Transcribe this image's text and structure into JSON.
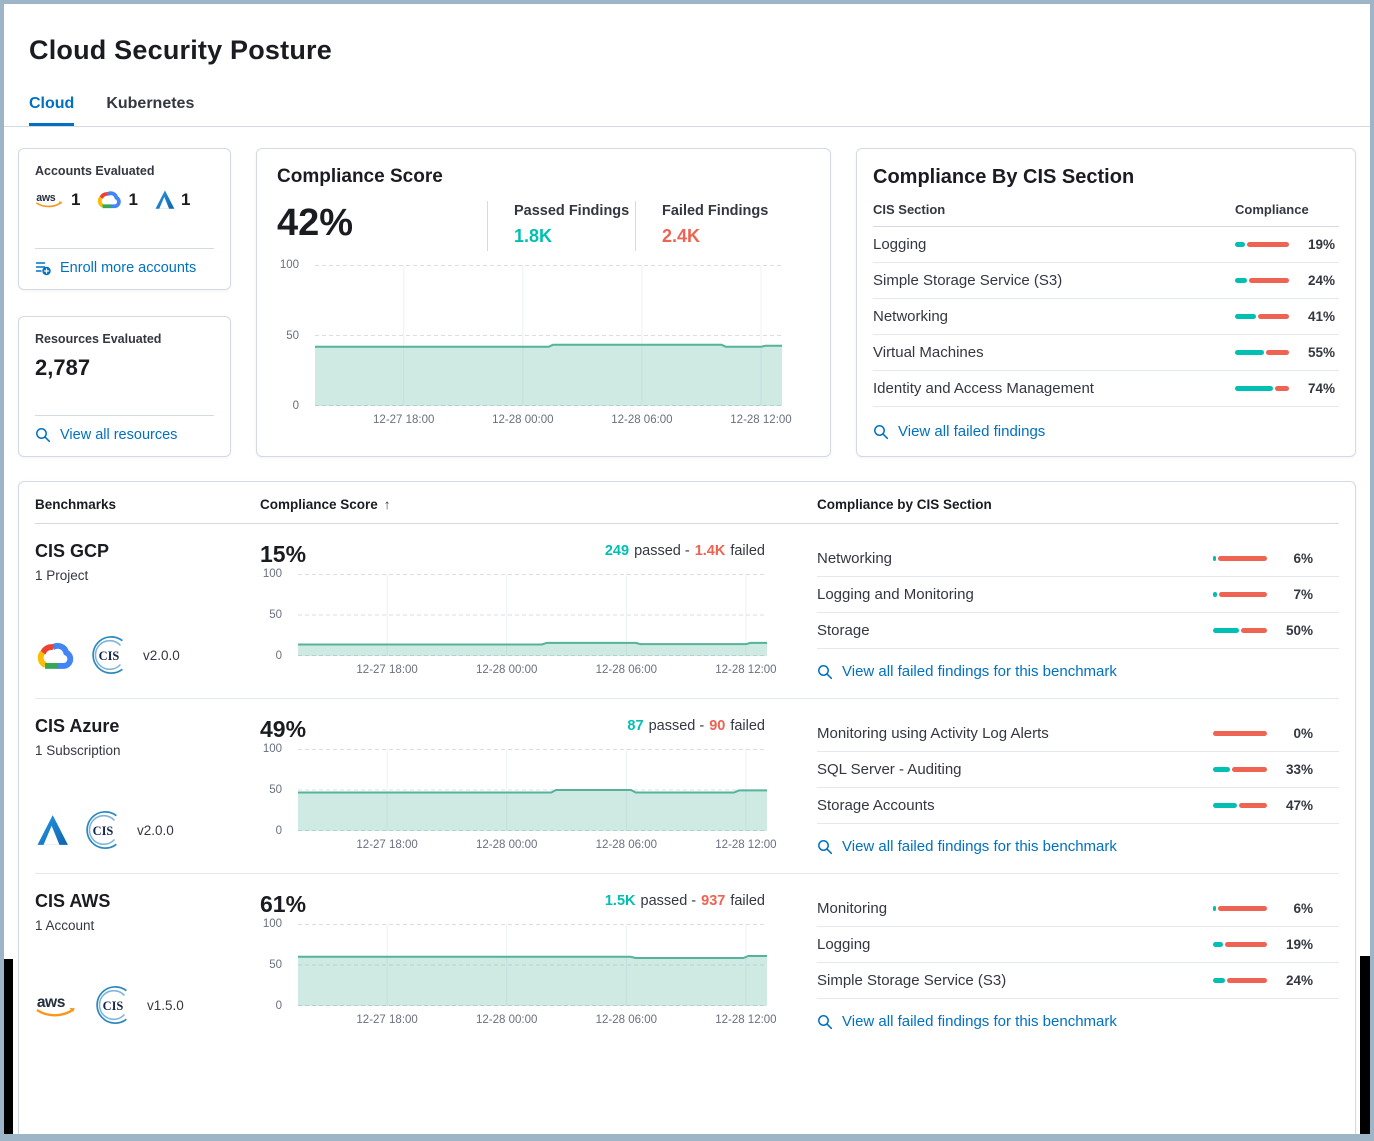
{
  "page": {
    "title": "Cloud Security Posture"
  },
  "tabs": [
    {
      "label": "Cloud"
    },
    {
      "label": "Kubernetes"
    }
  ],
  "accounts_card": {
    "title": "Accounts Evaluated",
    "providers": [
      {
        "name": "AWS",
        "count": "1"
      },
      {
        "name": "Google Cloud",
        "count": "1"
      },
      {
        "name": "Azure",
        "count": "1"
      }
    ],
    "link": "Enroll more accounts"
  },
  "resources_card": {
    "title": "Resources Evaluated",
    "count": "2,787",
    "link": "View all resources"
  },
  "score_card": {
    "title": "Compliance Score",
    "score": "42%",
    "passed_label": "Passed Findings",
    "passed_value": "1.8K",
    "failed_label": "Failed Findings",
    "failed_value": "2.4K"
  },
  "cis_card": {
    "title": "Compliance By CIS Section",
    "col_section": "CIS Section",
    "col_compliance": "Compliance",
    "rows": [
      {
        "name": "Logging",
        "pct": 19,
        "pct_label": "19%"
      },
      {
        "name": "Simple Storage Service (S3)",
        "pct": 24,
        "pct_label": "24%"
      },
      {
        "name": "Networking",
        "pct": 41,
        "pct_label": "41%"
      },
      {
        "name": "Virtual Machines",
        "pct": 55,
        "pct_label": "55%"
      },
      {
        "name": "Identity and Access Management",
        "pct": 74,
        "pct_label": "74%"
      }
    ],
    "link": "View all failed findings"
  },
  "benchmarks": {
    "col_benchmarks": "Benchmarks",
    "col_score": "Compliance Score",
    "sort_arrow": "↑",
    "col_sections": "Compliance by CIS Section",
    "link_label": "View all failed findings for this benchmark",
    "rows": [
      {
        "name": "CIS GCP",
        "subtitle": "1 Project",
        "version": "v2.0.0",
        "score": "15%",
        "passed_value": "249",
        "passed_word": "passed -",
        "failed_value": "1.4K",
        "failed_word": "failed",
        "sections": [
          {
            "name": "Networking",
            "pct": 6,
            "pct_label": "6%"
          },
          {
            "name": "Logging and Monitoring",
            "pct": 7,
            "pct_label": "7%"
          },
          {
            "name": "Storage",
            "pct": 50,
            "pct_label": "50%"
          }
        ]
      },
      {
        "name": "CIS Azure",
        "subtitle": "1 Subscription",
        "version": "v2.0.0",
        "score": "49%",
        "passed_value": "87",
        "passed_word": "passed -",
        "failed_value": "90",
        "failed_word": "failed",
        "sections": [
          {
            "name": "Monitoring using Activity Log Alerts",
            "pct": 0,
            "pct_label": "0%"
          },
          {
            "name": "SQL Server - Auditing",
            "pct": 33,
            "pct_label": "33%"
          },
          {
            "name": "Storage Accounts",
            "pct": 47,
            "pct_label": "47%"
          }
        ]
      },
      {
        "name": "CIS AWS",
        "subtitle": "1 Account",
        "version": "v1.5.0",
        "score": "61%",
        "passed_value": "1.5K",
        "passed_word": "passed -",
        "failed_value": "937",
        "failed_word": "failed",
        "sections": [
          {
            "name": "Monitoring",
            "pct": 6,
            "pct_label": "6%"
          },
          {
            "name": "Logging",
            "pct": 19,
            "pct_label": "19%"
          },
          {
            "name": "Simple Storage Service (S3)",
            "pct": 24,
            "pct_label": "24%"
          }
        ]
      }
    ]
  },
  "charts": {
    "type": "area",
    "ymax": 100,
    "yticks": [
      {
        "f": 0,
        "label": "100"
      },
      {
        "f": 0.5,
        "label": "50"
      },
      {
        "f": 1,
        "label": "0"
      }
    ],
    "xticks": [
      {
        "f": 0.19,
        "label": "12-27 18:00"
      },
      {
        "f": 0.445,
        "label": "12-28 00:00"
      },
      {
        "f": 0.7,
        "label": "12-28 06:00"
      },
      {
        "f": 0.955,
        "label": "12-28 12:00"
      }
    ],
    "series": {
      "overview": [
        [
          0,
          42
        ],
        [
          0.5,
          42
        ],
        [
          0.51,
          43.5
        ],
        [
          0.87,
          43.5
        ],
        [
          0.88,
          42
        ],
        [
          0.955,
          42
        ],
        [
          0.965,
          42.8
        ],
        [
          1,
          42.8
        ]
      ],
      "gcp": [
        [
          0,
          14
        ],
        [
          0.52,
          14
        ],
        [
          0.53,
          16
        ],
        [
          0.72,
          16
        ],
        [
          0.73,
          14.5
        ],
        [
          0.955,
          14.5
        ],
        [
          0.965,
          16
        ],
        [
          1,
          16
        ]
      ],
      "azure": [
        [
          0,
          47
        ],
        [
          0.54,
          47
        ],
        [
          0.55,
          50
        ],
        [
          0.71,
          50
        ],
        [
          0.72,
          47
        ],
        [
          0.93,
          47
        ],
        [
          0.94,
          49.5
        ],
        [
          1,
          49.5
        ]
      ],
      "aws": [
        [
          0,
          60
        ],
        [
          0.71,
          60
        ],
        [
          0.72,
          58.5
        ],
        [
          0.95,
          58.5
        ],
        [
          0.96,
          61
        ],
        [
          1,
          61
        ]
      ]
    },
    "colors": {
      "line": "#54b399",
      "fill": "rgba(84,179,153,0.28)",
      "grid_h": "#d8dde6",
      "grid_v": "#edf0f5",
      "tick_text": "#69707d"
    }
  },
  "bar_colors": {
    "passed": "#00bfb3",
    "failed": "#ee6352"
  },
  "accent": {
    "link_blue": "#0071c2"
  }
}
